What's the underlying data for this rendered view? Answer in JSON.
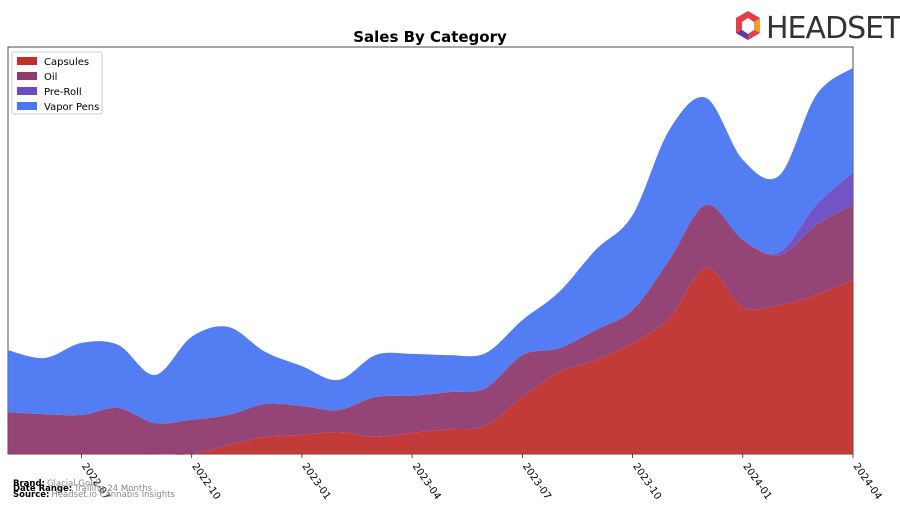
{
  "chart_data": {
    "type": "area",
    "title": "Sales By Category",
    "x": [
      "2022-05",
      "2022-06",
      "2022-07",
      "2022-08",
      "2022-09",
      "2022-10",
      "2022-11",
      "2022-12",
      "2023-01",
      "2023-02",
      "2023-03",
      "2023-04",
      "2023-05",
      "2023-06",
      "2023-07",
      "2023-08",
      "2023-09",
      "2023-10",
      "2023-11",
      "2023-12",
      "2024-01",
      "2024-02",
      "2024-03",
      "2024-04"
    ],
    "xlim": [
      "2022-05",
      "2024-04"
    ],
    "xticks": [
      "2022-07",
      "2022-10",
      "2023-01",
      "2023-04",
      "2023-07",
      "2023-10",
      "2024-01",
      "2024-04"
    ],
    "ylim": [
      0,
      100
    ],
    "legend": "upper left",
    "series": [
      {
        "name": "Capsules",
        "color": "#c0302e",
        "values": [
          0,
          0,
          0,
          0,
          0,
          0,
          2.2,
          4.2,
          4.7,
          5.4,
          4.2,
          5.2,
          6.1,
          6.9,
          14.0,
          20.1,
          23.1,
          27.3,
          33.4,
          45.7,
          36.1,
          36.6,
          39.1,
          42.8
        ]
      },
      {
        "name": "Oil",
        "color": "#8e3b6e",
        "values": [
          10.3,
          9.8,
          9.6,
          11.3,
          7.6,
          8.4,
          7.4,
          8.1,
          7.1,
          5.4,
          9.8,
          9.1,
          9.1,
          9.3,
          10.3,
          5.9,
          7.4,
          8.1,
          14.3,
          15.5,
          16.5,
          12.3,
          17.2,
          18.4
        ]
      },
      {
        "name": "Pre-Roll",
        "color": "#6a4bc4",
        "values": [
          0,
          0,
          0,
          0,
          0,
          0,
          0,
          0,
          0,
          0,
          0,
          0,
          0,
          0,
          0,
          0,
          0,
          0,
          0,
          0,
          0,
          0.7,
          4.9,
          7.9
        ]
      },
      {
        "name": "Vapor Pens",
        "color": "#4a76f2",
        "values": [
          15.2,
          13.8,
          17.7,
          15.5,
          11.8,
          20.4,
          21.6,
          12.8,
          9.8,
          7.4,
          10.3,
          10.3,
          9.1,
          8.6,
          8.6,
          13.8,
          19.7,
          23.3,
          31.9,
          26.3,
          19.7,
          18.9,
          27.0,
          25.8
        ]
      }
    ]
  },
  "footer": {
    "brand_label": "Brand:",
    "brand": "Glacial Gold",
    "range_label": "Date Range:",
    "range": "Trailing 24 Months",
    "source_label": "Source:",
    "source": "Headset.io Cannabis Insights"
  },
  "logo": "HEADSET"
}
